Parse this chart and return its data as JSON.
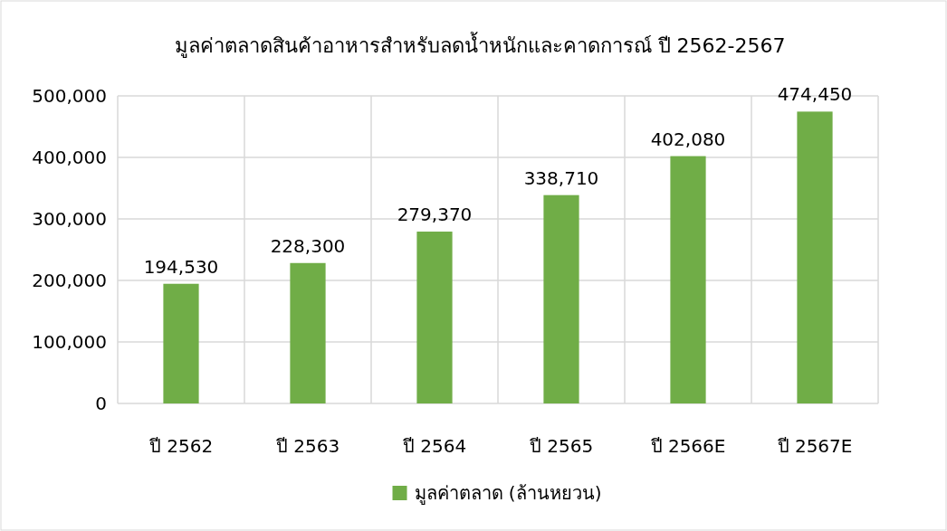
{
  "chart_data": {
    "type": "bar",
    "title": "มูลค่าตลาดสินค้าอาหารสำหรับลดน้ำหนักและคาดการณ์ ปี 2562-2567",
    "categories": [
      "ปี 2562",
      "ปี 2563",
      "ปี 2564",
      "ปี 2565",
      "ปี 2566E",
      "ปี 2567E"
    ],
    "series": [
      {
        "name": "มูลค่าตลาด (ล้านหยวน)",
        "color": "#70ad47",
        "values": [
          194530,
          228300,
          279370,
          338710,
          402080,
          474450
        ],
        "value_labels": [
          "194,530",
          "228,300",
          "279,370",
          "338,710",
          "402,080",
          "474,450"
        ]
      }
    ],
    "ylim": [
      0,
      500000
    ],
    "yticks": [
      {
        "value": 0,
        "label": "0"
      },
      {
        "value": 100000,
        "label": "100,000"
      },
      {
        "value": 200000,
        "label": "200,000"
      },
      {
        "value": 300000,
        "label": "300,000"
      },
      {
        "value": 400000,
        "label": "400,000"
      },
      {
        "value": 500000,
        "label": "500,000"
      }
    ],
    "grid": true,
    "legend": "bottom"
  }
}
